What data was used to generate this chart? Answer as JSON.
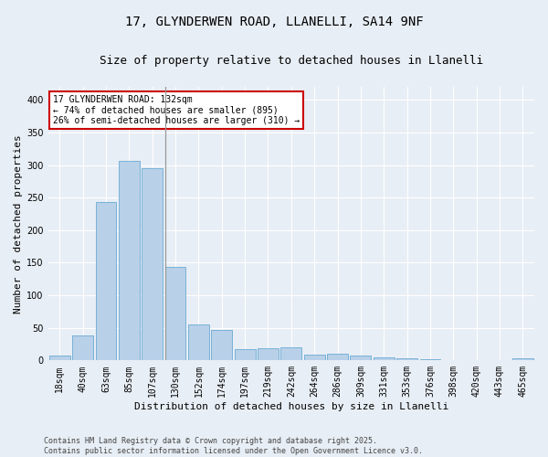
{
  "title1": "17, GLYNDERWEN ROAD, LLANELLI, SA14 9NF",
  "title2": "Size of property relative to detached houses in Llanelli",
  "xlabel": "Distribution of detached houses by size in Llanelli",
  "ylabel": "Number of detached properties",
  "categories": [
    "18sqm",
    "40sqm",
    "63sqm",
    "85sqm",
    "107sqm",
    "130sqm",
    "152sqm",
    "174sqm",
    "197sqm",
    "219sqm",
    "242sqm",
    "264sqm",
    "286sqm",
    "309sqm",
    "331sqm",
    "353sqm",
    "376sqm",
    "398sqm",
    "420sqm",
    "443sqm",
    "465sqm"
  ],
  "values": [
    7,
    38,
    243,
    307,
    295,
    143,
    55,
    47,
    18,
    19,
    20,
    9,
    10,
    7,
    5,
    3,
    2,
    1,
    0,
    1,
    3
  ],
  "bar_color": "#b8d0e8",
  "bar_edge_color": "#6aaad4",
  "highlight_line_index": 5,
  "property_line_label": "17 GLYNDERWEN ROAD: 132sqm",
  "annotation_line1": "← 74% of detached houses are smaller (895)",
  "annotation_line2": "26% of semi-detached houses are larger (310) →",
  "annotation_box_color": "#ffffff",
  "annotation_box_edge_color": "#cc0000",
  "footer_line1": "Contains HM Land Registry data © Crown copyright and database right 2025.",
  "footer_line2": "Contains public sector information licensed under the Open Government Licence v3.0.",
  "ylim": [
    0,
    420
  ],
  "yticks": [
    0,
    50,
    100,
    150,
    200,
    250,
    300,
    350,
    400
  ],
  "bg_color": "#e8eef5",
  "plot_bg_color": "#e8eef5",
  "grid_color": "#ffffff",
  "title_fontsize": 10,
  "subtitle_fontsize": 9,
  "axis_label_fontsize": 8,
  "tick_fontsize": 7,
  "annotation_fontsize": 7,
  "footer_fontsize": 6
}
